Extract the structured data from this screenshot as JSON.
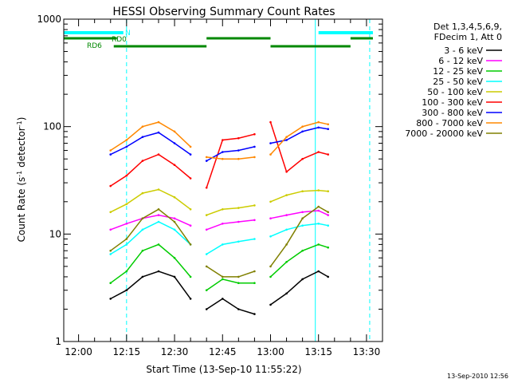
{
  "chart_data": {
    "type": "line",
    "title": "HESSI Observing Summary Count Rates",
    "xlabel": "Start Time (13-Sep-10 11:55:22)",
    "ylabel": "Count Rate (s⁻¹ detector⁻¹)",
    "y_scale": "log",
    "ylim": [
      1,
      1000
    ],
    "xlim": [
      "11:55:22",
      "13:35:00"
    ],
    "x_ticks": [
      "12:00",
      "12:15",
      "12:30",
      "12:45",
      "13:00",
      "13:15",
      "13:30"
    ],
    "y_ticks": [
      "1",
      "10",
      "100",
      "1000"
    ],
    "legend_position": "right",
    "legend_header": [
      "Det 1,3,4,5,6,9,",
      "FDecim 1, Att 0"
    ],
    "timestamp": "13-Sep-2010 12:56",
    "gaps": [
      [
        "12:40",
        "12:40"
      ],
      [
        "13:00",
        "13:00"
      ]
    ],
    "x": [
      "12:10",
      "12:15",
      "12:20",
      "12:25",
      "12:30",
      "12:35",
      "12:40",
      "12:45",
      "12:50",
      "12:55",
      "13:00",
      "13:05",
      "13:10",
      "13:15",
      "13:18"
    ],
    "series": [
      {
        "name": "3 - 6 keV",
        "color": "#000000",
        "values": [
          2.5,
          3,
          4,
          4.5,
          4,
          2.5,
          2,
          2.5,
          2,
          1.8,
          2.2,
          2.8,
          3.8,
          4.5,
          4
        ]
      },
      {
        "name": "6 - 12 keV",
        "color": "#ff00ff",
        "values": [
          11,
          12.5,
          14,
          15,
          14,
          12,
          11,
          12.5,
          13,
          13.5,
          14,
          15,
          16,
          16.5,
          15
        ]
      },
      {
        "name": "12 - 25 keV",
        "color": "#00cc00",
        "values": [
          3.5,
          4.5,
          7,
          8,
          6,
          4,
          3,
          3.8,
          3.5,
          3.5,
          4,
          5.5,
          7,
          8,
          7.5
        ]
      },
      {
        "name": "25 - 50 keV",
        "color": "#00ffff",
        "values": [
          6.5,
          8,
          11,
          13,
          11,
          8,
          6.5,
          8,
          8.5,
          9,
          9.5,
          11,
          12,
          12.5,
          12
        ]
      },
      {
        "name": "50 - 100 keV",
        "color": "#cccc00",
        "values": [
          16,
          19,
          24,
          26,
          22,
          17,
          15,
          17,
          17.5,
          18.5,
          20,
          23,
          25,
          25.5,
          25
        ]
      },
      {
        "name": "100 - 300 keV",
        "color": "#ff0000",
        "values": [
          28,
          35,
          48,
          55,
          44,
          33,
          27,
          75,
          78,
          85,
          110,
          38,
          50,
          58,
          55
        ]
      },
      {
        "name": "300 - 800 keV",
        "color": "#0000ff",
        "values": [
          55,
          65,
          80,
          88,
          70,
          55,
          48,
          58,
          60,
          65,
          70,
          75,
          90,
          98,
          95
        ]
      },
      {
        "name": "800 - 7000 keV",
        "color": "#ff8800",
        "values": [
          60,
          75,
          100,
          110,
          90,
          65,
          52,
          50,
          50,
          52,
          55,
          80,
          100,
          110,
          105
        ]
      },
      {
        "name": "7000 - 20000 keV",
        "color": "#808000",
        "values": [
          7,
          9,
          14,
          17,
          13,
          8,
          5,
          4,
          4,
          4.5,
          5,
          8,
          14,
          18,
          16
        ]
      }
    ],
    "flags": [
      {
        "label": "N",
        "color": "#00ffff",
        "level": 1,
        "spans": [
          [
            "11:55:22",
            "12:14"
          ],
          [
            "13:15",
            "13:32"
          ]
        ]
      },
      {
        "label": "RD0",
        "color": "#008800",
        "level": 2,
        "spans": [
          [
            "11:55:22",
            "12:12"
          ],
          [
            "12:40",
            "13:00"
          ],
          [
            "13:25",
            "13:32"
          ]
        ]
      },
      {
        "label": "RD6",
        "color": "#008800",
        "level": 3,
        "spans": [
          [
            "12:11",
            "12:40"
          ],
          [
            "13:00",
            "13:25"
          ]
        ]
      }
    ],
    "vlines": [
      {
        "time": "11:55:22",
        "style": "solid",
        "color": "#00ffff"
      },
      {
        "time": "12:15",
        "style": "dashed",
        "color": "#00ffff"
      },
      {
        "time": "13:14",
        "style": "solid",
        "color": "#00ffff"
      },
      {
        "time": "13:31",
        "style": "dashed",
        "color": "#00ffff"
      }
    ]
  }
}
